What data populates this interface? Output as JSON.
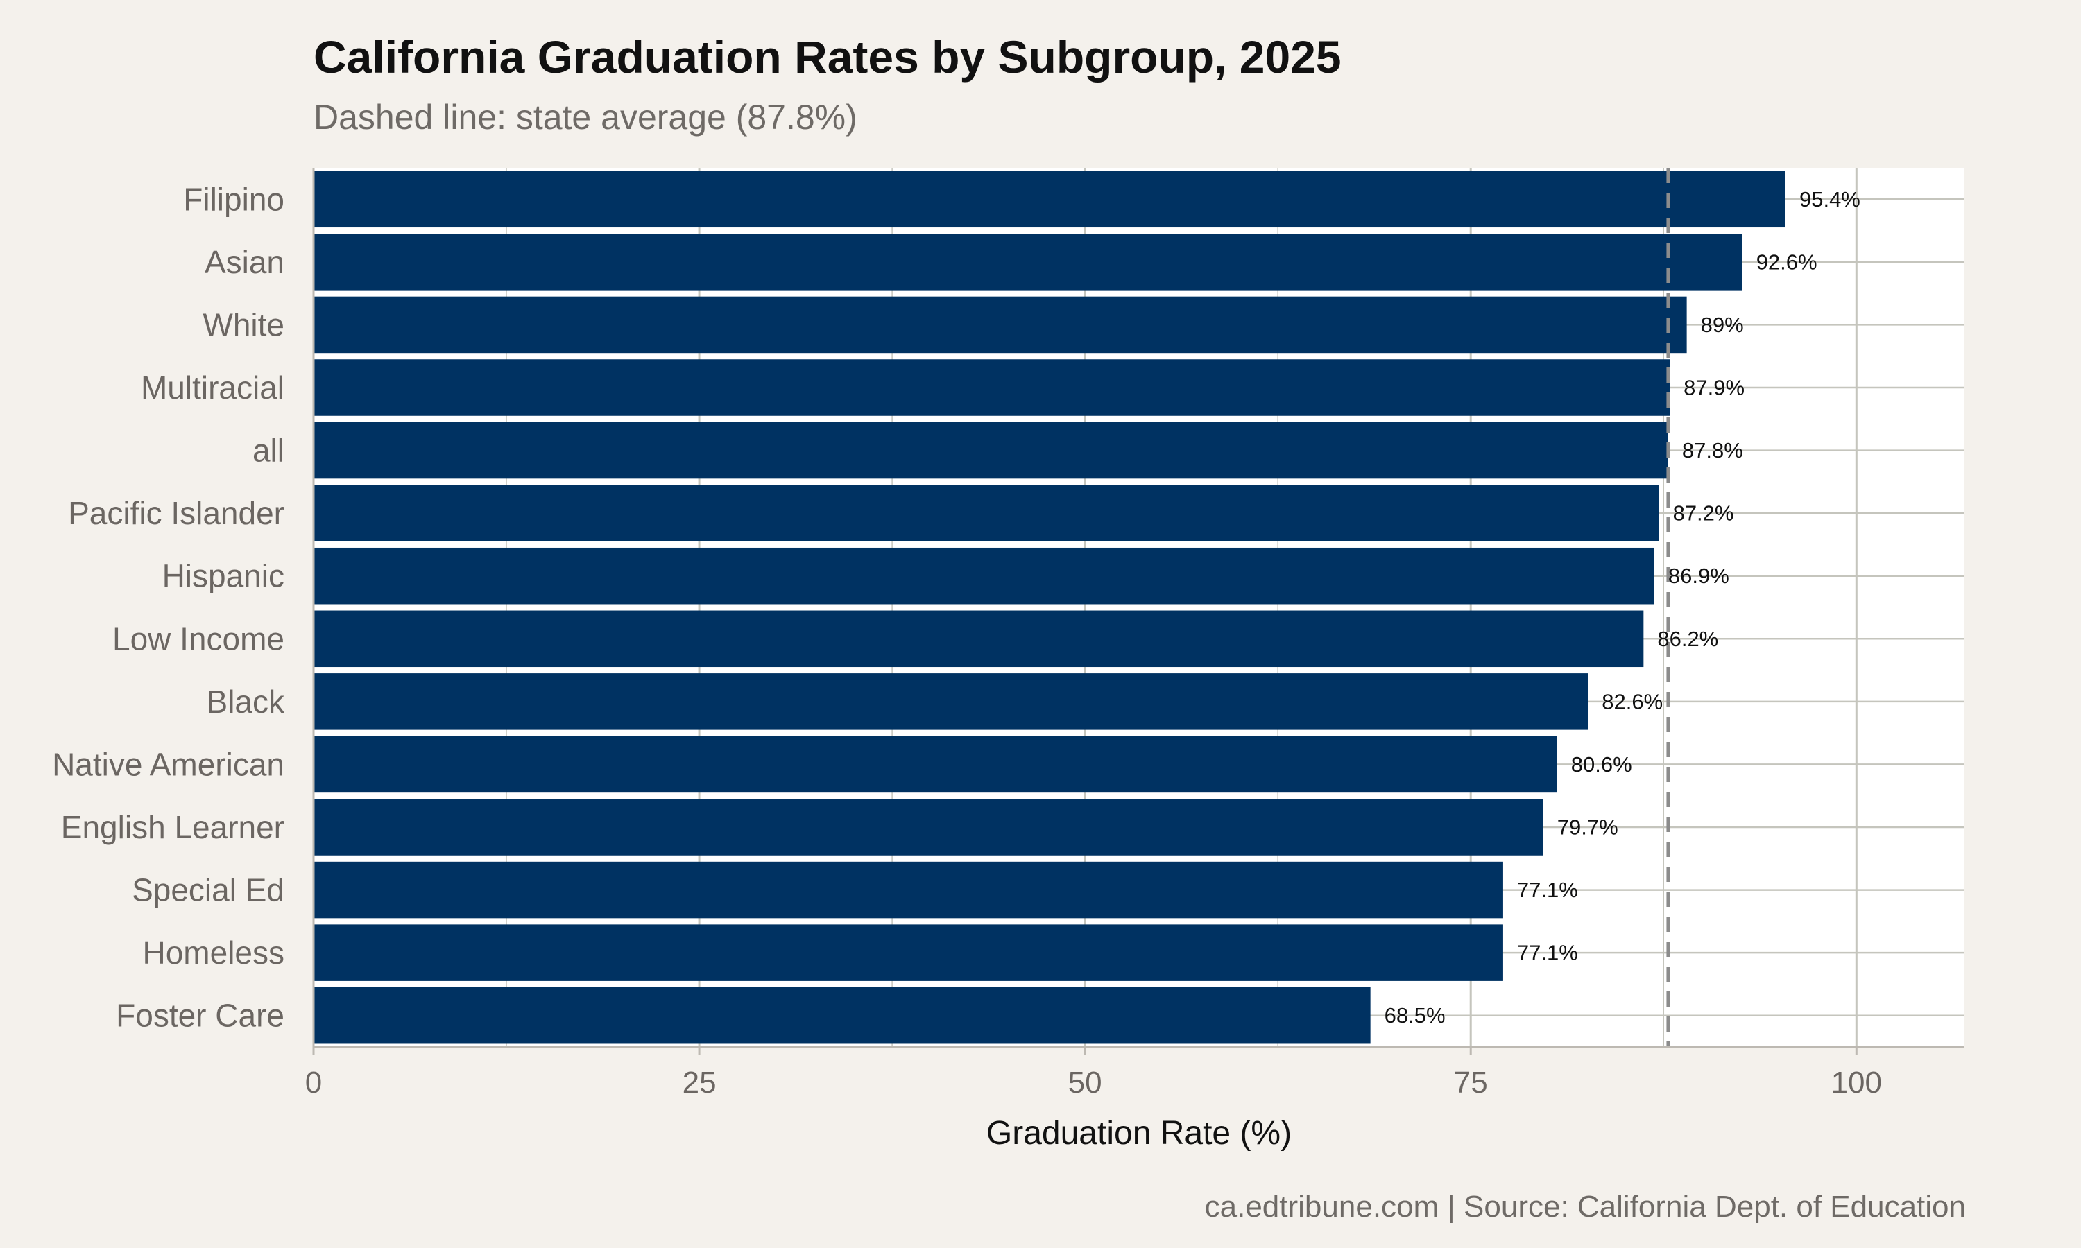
{
  "colors": {
    "background": "#f4f1ec",
    "panel": "#ffffff",
    "bar": "#003262",
    "gridline": "#c5c5bd",
    "reference_line": "#8c8c8c"
  },
  "chart_data": {
    "type": "bar",
    "orientation": "horizontal",
    "title": "California Graduation Rates by Subgroup, 2025",
    "subtitle": "Dashed line: state average (87.8%)",
    "caption": "ca.edtribune.com | Source: California Dept. of Education",
    "xlabel": "Graduation Rate (%)",
    "ylabel": "",
    "xlim": [
      0,
      107
    ],
    "x_ticks": [
      0,
      25,
      50,
      75,
      100
    ],
    "x_tick_labels": [
      "0",
      "25",
      "50",
      "75",
      "100"
    ],
    "categories": [
      "Filipino",
      "Asian",
      "White",
      "Multiracial",
      "all",
      "Pacific Islander",
      "Hispanic",
      "Low Income",
      "Black",
      "Native American",
      "English Learner",
      "Special Ed",
      "Homeless",
      "Foster Care"
    ],
    "values": [
      95.4,
      92.6,
      89.0,
      87.9,
      87.8,
      87.2,
      86.9,
      86.2,
      82.6,
      80.6,
      79.7,
      77.1,
      77.1,
      68.5
    ],
    "value_labels": [
      "95.4%",
      "92.6%",
      "89%",
      "87.9%",
      "87.8%",
      "87.2%",
      "86.9%",
      "86.2%",
      "82.6%",
      "80.6%",
      "79.7%",
      "77.1%",
      "77.1%",
      "68.5%"
    ],
    "reference_line": {
      "value": 87.8,
      "style": "dashed"
    },
    "grid": true,
    "legend": "none"
  }
}
